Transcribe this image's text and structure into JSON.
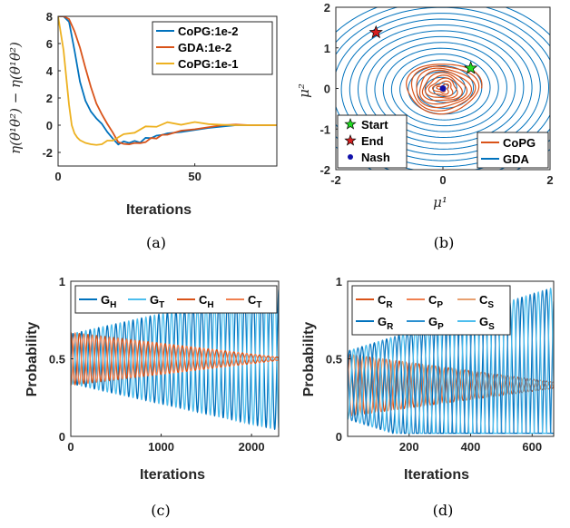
{
  "colors": {
    "blue": "#0072BD",
    "orange": "#D95319",
    "yellow": "#EDB120",
    "lightblue": "#4DBEEE",
    "lightorange": "#F08050",
    "green": "#22DD22",
    "red": "#D62020",
    "navy": "#1010AA"
  },
  "chart_data": [
    {
      "id": "a",
      "type": "line",
      "caption": "(a)",
      "xlabel": "Iterations",
      "ylabel": "η(θ¹θ²) − η(θ¹θ²)",
      "xlim": [
        0,
        80
      ],
      "ylim": [
        -3,
        8
      ],
      "xticks": [
        0,
        50
      ],
      "yticks": [
        -2,
        0,
        2,
        4,
        6,
        8
      ],
      "legend_position": "top-right",
      "series": [
        {
          "name": "CoPG:1e-2",
          "color": "#0072BD",
          "x": [
            0,
            2,
            4,
            6,
            8,
            10,
            12,
            14,
            16,
            18,
            20,
            22,
            24,
            26,
            28,
            30,
            32,
            34,
            36,
            38,
            40,
            45,
            50,
            55,
            60,
            65,
            70,
            75,
            80
          ],
          "y": [
            8,
            8,
            7.6,
            5.5,
            3.2,
            1.8,
            1.0,
            0.5,
            0.1,
            -0.5,
            -1.1,
            -1.3,
            -1.3,
            -1.2,
            -1.25,
            -1.2,
            -1.0,
            -0.9,
            -0.8,
            -0.7,
            -0.6,
            -0.5,
            -0.35,
            -0.2,
            -0.1,
            0,
            0,
            0,
            0
          ]
        },
        {
          "name": "GDA:1e-2",
          "color": "#D95319",
          "x": [
            0,
            2,
            4,
            6,
            8,
            10,
            12,
            14,
            16,
            18,
            20,
            22,
            24,
            26,
            28,
            30,
            32,
            34,
            36,
            38,
            40,
            45,
            50,
            55,
            60,
            65,
            70,
            75,
            80
          ],
          "y": [
            8,
            8,
            7.8,
            6.9,
            5.7,
            4.2,
            2.8,
            1.6,
            0.8,
            0.1,
            -0.6,
            -1.2,
            -1.4,
            -1.4,
            -1.3,
            -1.35,
            -1.2,
            -1.0,
            -0.9,
            -0.8,
            -0.7,
            -0.4,
            -0.3,
            -0.15,
            0,
            0.05,
            0,
            0,
            0
          ]
        },
        {
          "name": "CoPG:1e-1",
          "color": "#EDB120",
          "x": [
            0,
            2,
            4,
            5,
            6,
            7,
            8,
            10,
            12,
            14,
            16,
            18,
            20,
            24,
            28,
            32,
            36,
            40,
            45,
            50,
            55,
            60,
            65,
            70,
            75,
            80
          ],
          "y": [
            8,
            5.5,
            1.5,
            0.0,
            -0.6,
            -0.9,
            -1.1,
            -1.3,
            -1.4,
            -1.45,
            -1.35,
            -1.2,
            -1.05,
            -0.75,
            -0.45,
            -0.2,
            0,
            0.1,
            0.15,
            0.12,
            0.08,
            0.03,
            0,
            0,
            0,
            0
          ]
        }
      ]
    },
    {
      "id": "b",
      "type": "line",
      "caption": "(b)",
      "xlabel": "μ¹",
      "ylabel": "μ²",
      "xlim": [
        -2,
        2
      ],
      "ylim": [
        -2,
        2
      ],
      "xticks": [
        -2,
        0,
        2
      ],
      "yticks": [
        -2,
        -1,
        0,
        1,
        2
      ],
      "legend_position": "bottom-right",
      "markers_legend_position": "bottom-left",
      "series": [
        {
          "name": "CoPG",
          "color": "#D95319",
          "center": [
            0,
            0
          ],
          "start_radius": 0.72,
          "end_radius": 0.04,
          "turns": 9
        },
        {
          "name": "GDA",
          "color": "#0072BD",
          "center": [
            0,
            0
          ],
          "start_radius": 0.1,
          "end_radius": 2.6,
          "turns": 16
        }
      ],
      "markers": [
        {
          "name": "Start",
          "shape": "star",
          "color": "#22DD22",
          "x": 0.52,
          "y": 0.5
        },
        {
          "name": "End",
          "shape": "star",
          "color": "#D62020",
          "x": -1.25,
          "y": 1.38
        },
        {
          "name": "Nash",
          "shape": "dot",
          "color": "#1010AA",
          "x": 0,
          "y": 0
        }
      ]
    },
    {
      "id": "c",
      "type": "line",
      "caption": "(c)",
      "xlabel": "Iterations",
      "ylabel": "Probability",
      "xlim": [
        0,
        2300
      ],
      "ylim": [
        0,
        1
      ],
      "xticks": [
        0,
        1000,
        2000
      ],
      "yticks": [
        0,
        0.5,
        1
      ],
      "legend_position": "top",
      "series": [
        {
          "name": "G_H",
          "sub": "H",
          "main": "G",
          "color": "#0072BD",
          "center": 0.5,
          "amp_start": 0.16,
          "amp_end": 0.46,
          "period": 95,
          "phase": 0
        },
        {
          "name": "G_T",
          "sub": "T",
          "main": "G",
          "color": "#4DBEEE",
          "center": 0.5,
          "amp_start": 0.16,
          "amp_end": 0.46,
          "period": 95,
          "phase": 3.14159
        },
        {
          "name": "C_H",
          "sub": "H",
          "main": "C",
          "color": "#D95319",
          "center": 0.5,
          "amp_start": 0.17,
          "amp_end": 0.01,
          "period": 95,
          "phase": 1.5708
        },
        {
          "name": "C_T",
          "sub": "T",
          "main": "C",
          "color": "#F08050",
          "center": 0.5,
          "amp_start": 0.17,
          "amp_end": 0.01,
          "period": 95,
          "phase": 4.7124
        }
      ]
    },
    {
      "id": "d",
      "type": "line",
      "caption": "(d)",
      "xlabel": "Iterations",
      "ylabel": "Probability",
      "xlim": [
        0,
        670
      ],
      "ylim": [
        0,
        1
      ],
      "xticks": [
        200,
        400,
        600
      ],
      "yticks": [
        0,
        0.5,
        1
      ],
      "legend_position": "top",
      "series": [
        {
          "name": "C_R",
          "sub": "R",
          "main": "C",
          "color": "#D95319",
          "center": 0.33,
          "amp_start": 0.2,
          "amp_end": 0.02,
          "period": 32,
          "phase": 0
        },
        {
          "name": "C_P",
          "sub": "P",
          "main": "C",
          "color": "#F08050",
          "center": 0.33,
          "amp_start": 0.2,
          "amp_end": 0.02,
          "period": 32,
          "phase": 2.09
        },
        {
          "name": "C_S",
          "sub": "S",
          "main": "C",
          "color": "#E8A070",
          "center": 0.33,
          "amp_start": 0.2,
          "amp_end": 0.02,
          "period": 32,
          "phase": 4.19
        },
        {
          "name": "G_R",
          "sub": "R",
          "main": "G",
          "color": "#0072BD",
          "center": 0.33,
          "amp_start": 0.22,
          "amp_end": 0.63,
          "period": 40,
          "phase": 0.5
        },
        {
          "name": "G_P",
          "sub": "P",
          "main": "G",
          "color": "#2A8FD0",
          "center": 0.33,
          "amp_start": 0.22,
          "amp_end": 0.63,
          "period": 40,
          "phase": 2.6
        },
        {
          "name": "G_S",
          "sub": "S",
          "main": "G",
          "color": "#4DBEEE",
          "center": 0.33,
          "amp_start": 0.22,
          "amp_end": 0.63,
          "period": 40,
          "phase": 4.7
        }
      ]
    }
  ]
}
